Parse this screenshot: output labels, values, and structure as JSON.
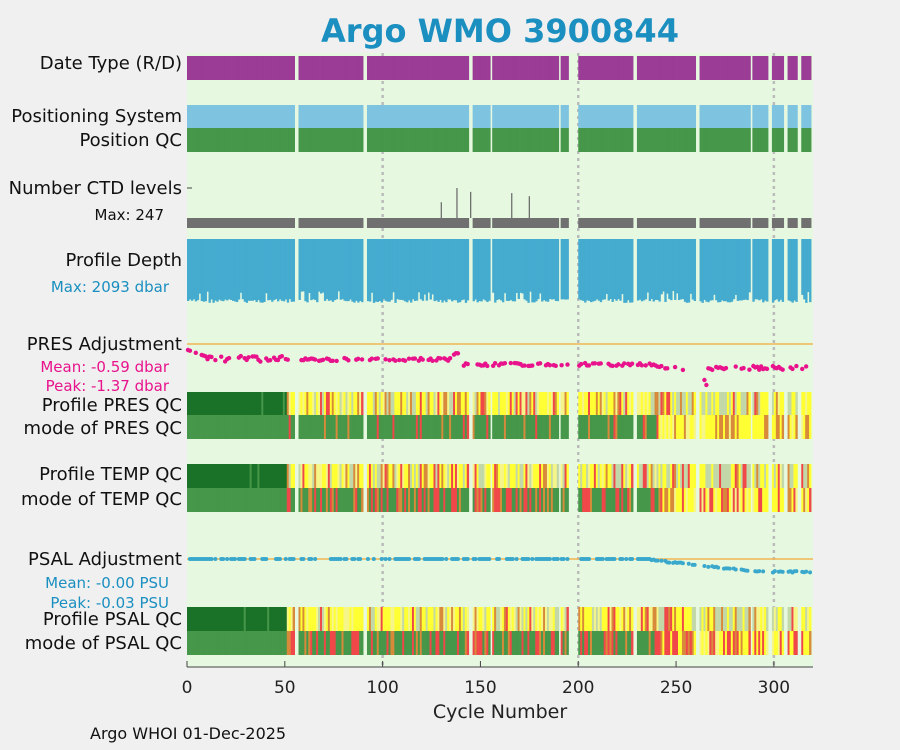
{
  "title": "Argo WMO 3900844",
  "footer": "Argo WHOI 01-Dec-2025",
  "labels": {
    "date_type": "Date Type (R/D)",
    "positioning_system": "Positioning System",
    "position_qc": "Position QC",
    "ctd_levels": "Number CTD levels",
    "ctd_max": "Max: 247",
    "profile_depth": "Profile Depth",
    "depth_max": "Max: 2093 dbar",
    "pres_adjustment": "PRES Adjustment",
    "pres_mean": "Mean: -0.59 dbar",
    "pres_peak": "Peak: -1.37 dbar",
    "profile_pres_qc": "Profile PRES QC",
    "mode_pres_qc": "mode of PRES QC",
    "profile_temp_qc": "Profile TEMP QC",
    "mode_temp_qc": "mode of TEMP QC",
    "psal_adjustment": "PSAL Adjustment",
    "psal_mean": "Mean: -0.00 PSU",
    "psal_peak": "Peak: -0.03 PSU",
    "profile_psal_qc": "Profile PSAL QC",
    "mode_psal_qc": "mode of PSAL QC"
  },
  "colors": {
    "title": "#1a8fc0",
    "background": "#e6f8df",
    "date_type": "#9b3d96",
    "positioning": "#7ec4e0",
    "position_qc": "#47974a",
    "ctd": "#707070",
    "depth": "#45abcf",
    "pres_adj": "#e8138c",
    "psal_adj": "#3aa8cc",
    "zero_line": "#f2b552",
    "qc_dark_green": "#1a7228",
    "qc_green": "#47974a",
    "qc_yellow": "#ffff33",
    "qc_light_yellow": "#f5f58a",
    "qc_sage": "#c2d8a8",
    "qc_orange": "#d88a3a",
    "qc_red": "#f04848",
    "qc_dark_red": "#c01818",
    "grid": "#bbbbbb"
  },
  "chart_data": {
    "type": "heatmap",
    "title": "Argo WMO 3900844",
    "xlabel": "Cycle Number",
    "xlim": [
      0,
      320
    ],
    "xticks": [
      0,
      50,
      100,
      150,
      200,
      250,
      300
    ],
    "n_cycles": 319,
    "missing_cycles": [
      55,
      56,
      90,
      91,
      144,
      145,
      155,
      190,
      195,
      196,
      197,
      198,
      199,
      228,
      229,
      260,
      261,
      288,
      297,
      298,
      305,
      306,
      312,
      313
    ],
    "ctd_levels_max": 247,
    "ctd_levels_spikes": [
      {
        "cycle": 130,
        "value": 130
      },
      {
        "cycle": 138,
        "value": 247
      },
      {
        "cycle": 145,
        "value": 215
      },
      {
        "cycle": 166,
        "value": 205
      },
      {
        "cycle": 175,
        "value": 180
      }
    ],
    "profile_depth_max_dbar": 2093,
    "pres_adjustment": {
      "mean": -0.59,
      "peak": -1.37,
      "unit": "dbar"
    },
    "psal_adjustment": {
      "mean": -0.0,
      "peak": -0.03,
      "unit": "PSU"
    }
  }
}
